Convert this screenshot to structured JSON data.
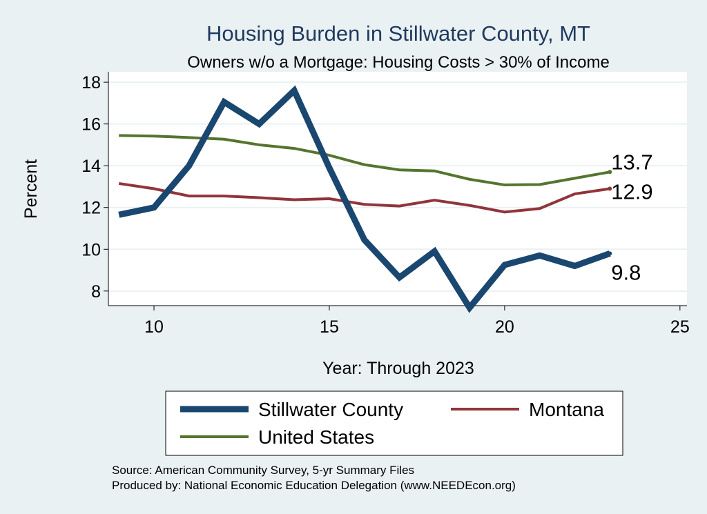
{
  "chart_data": {
    "type": "line",
    "title": "Housing Burden in Stillwater County, MT",
    "subtitle": "Owners w/o a Mortgage: Housing Costs > 30% of Income",
    "xlabel": "Year: Through 2023",
    "ylabel": "Percent",
    "xlim": [
      8.7,
      25.2
    ],
    "ylim": [
      7.3,
      18.5
    ],
    "xticks": [
      10,
      15,
      20,
      25
    ],
    "yticks": [
      8,
      10,
      12,
      14,
      16,
      18
    ],
    "grid": true,
    "legend_position": "bottom",
    "x": [
      9,
      10,
      11,
      12,
      13,
      14,
      15,
      16,
      17,
      18,
      19,
      20,
      21,
      22,
      23
    ],
    "series": [
      {
        "name": "Stillwater County",
        "color": "#1a476f",
        "values": [
          11.65,
          12.0,
          14.0,
          17.05,
          16.0,
          17.6,
          13.9,
          10.45,
          8.65,
          9.9,
          7.2,
          9.25,
          9.7,
          9.2,
          9.8
        ],
        "end_label": "9.8"
      },
      {
        "name": "Montana",
        "color": "#90353b",
        "values": [
          13.15,
          12.9,
          12.55,
          12.55,
          12.47,
          12.37,
          12.42,
          12.15,
          12.07,
          12.35,
          12.1,
          11.78,
          11.95,
          12.65,
          12.9
        ],
        "end_label": "12.9"
      },
      {
        "name": "United States",
        "color": "#55752f",
        "values": [
          15.45,
          15.42,
          15.35,
          15.27,
          15.0,
          14.83,
          14.5,
          14.05,
          13.8,
          13.75,
          13.35,
          13.08,
          13.1,
          13.4,
          13.7
        ],
        "end_label": "13.7"
      }
    ]
  },
  "source_line_1": "Source: American Community Survey, 5-yr Summary Files",
  "source_line_2": "Produced by: National Economic Education Delegation (www.NEEDEcon.org)"
}
